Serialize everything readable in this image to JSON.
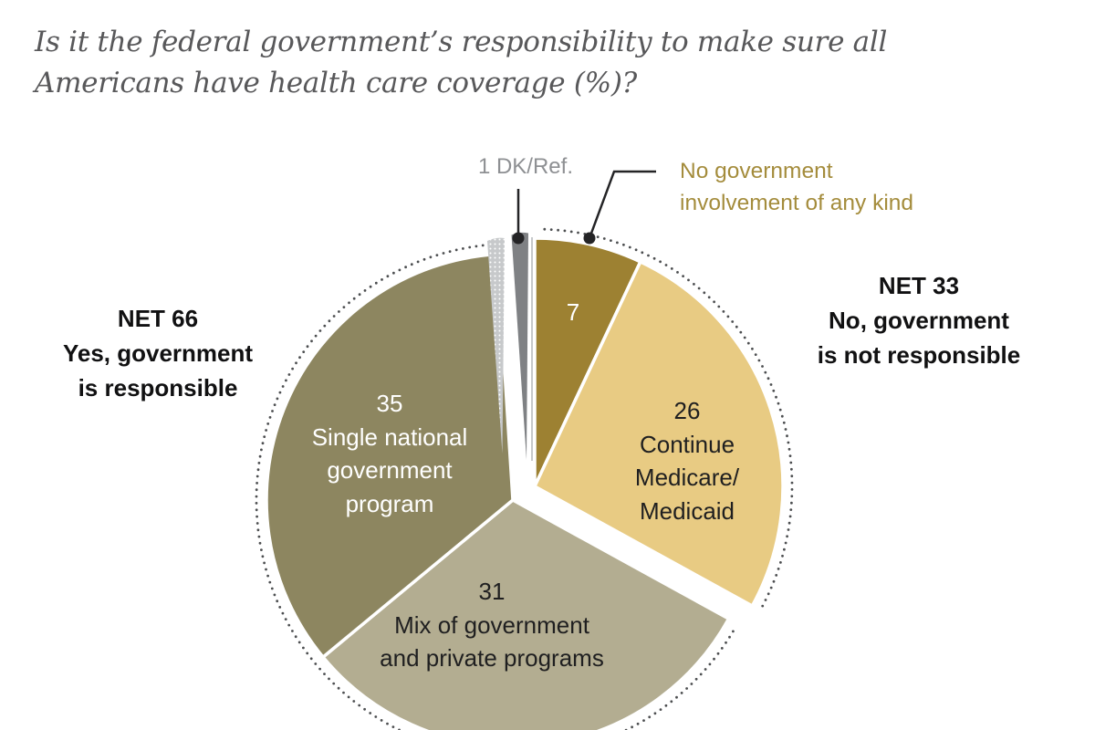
{
  "title": {
    "line1": "Is it the federal government’s responsibility to make sure all",
    "line2": "Americans have health care coverage (%)?"
  },
  "chart_data": {
    "type": "pie",
    "title": "Is it the federal government's responsibility to make sure all Americans have health care coverage (%)?",
    "unit": "percent",
    "start_angle_deg": 0,
    "direction": "clockwise",
    "legend_position": "callouts-and-inner-labels",
    "slices": [
      {
        "label": "No government involvement of any kind",
        "value": 7,
        "color": "#9d8132",
        "net": "No, government is not responsible"
      },
      {
        "label": "Continue Medicare/Medicaid",
        "value": 26,
        "color": "#e8cb83",
        "net": "No, government is not responsible"
      },
      {
        "label": "Mix of government and private programs",
        "value": 31,
        "color": "#b3ad91",
        "net": "Yes, government is responsible"
      },
      {
        "label": "Single national government program",
        "value": 35,
        "color": "#8d8660",
        "net": "Yes, government is responsible"
      },
      {
        "label": "DK/Ref.",
        "value": 1,
        "color": "#7f8184",
        "net": null
      }
    ],
    "nets": [
      {
        "label": "NET 66 — Yes, government is responsible",
        "value": 66
      },
      {
        "label": "NET 33 — No, government is not responsible",
        "value": 33
      }
    ]
  },
  "labels": {
    "dk": "1 DK/Ref.",
    "nogov": {
      "line1": "No government",
      "line2": "involvement of any kind"
    },
    "net66": {
      "line1": "NET 66",
      "line2": "Yes, government",
      "line3": "is responsible"
    },
    "net33": {
      "line1": "NET 33",
      "line2": "No, government",
      "line3": "is not responsible"
    },
    "slice35": {
      "line2": "Single national",
      "line3": "government",
      "line4": "program"
    },
    "slice26": {
      "line2": "Continue",
      "line3": "Medicare/",
      "line4": "Medicaid"
    },
    "slice31": {
      "line2": "Mix of government",
      "line3": "and private programs"
    }
  },
  "colors": {
    "background": "#ffffff",
    "title_text": "#58585a",
    "net_text": "#111112",
    "dk_text": "#8e9093",
    "nogov_text": "#a48c3c",
    "inner_label_light": "#ffffff",
    "inner_label_dark": "#1f1f20",
    "arc_dots": "#4c4e50",
    "callout": "#242426",
    "slice_gap_stroke": "#ffffff",
    "ghost_fill": "#c7c9cb",
    "ghost_dots": "#ffffff",
    "radial_line": "#c6c8ca"
  }
}
